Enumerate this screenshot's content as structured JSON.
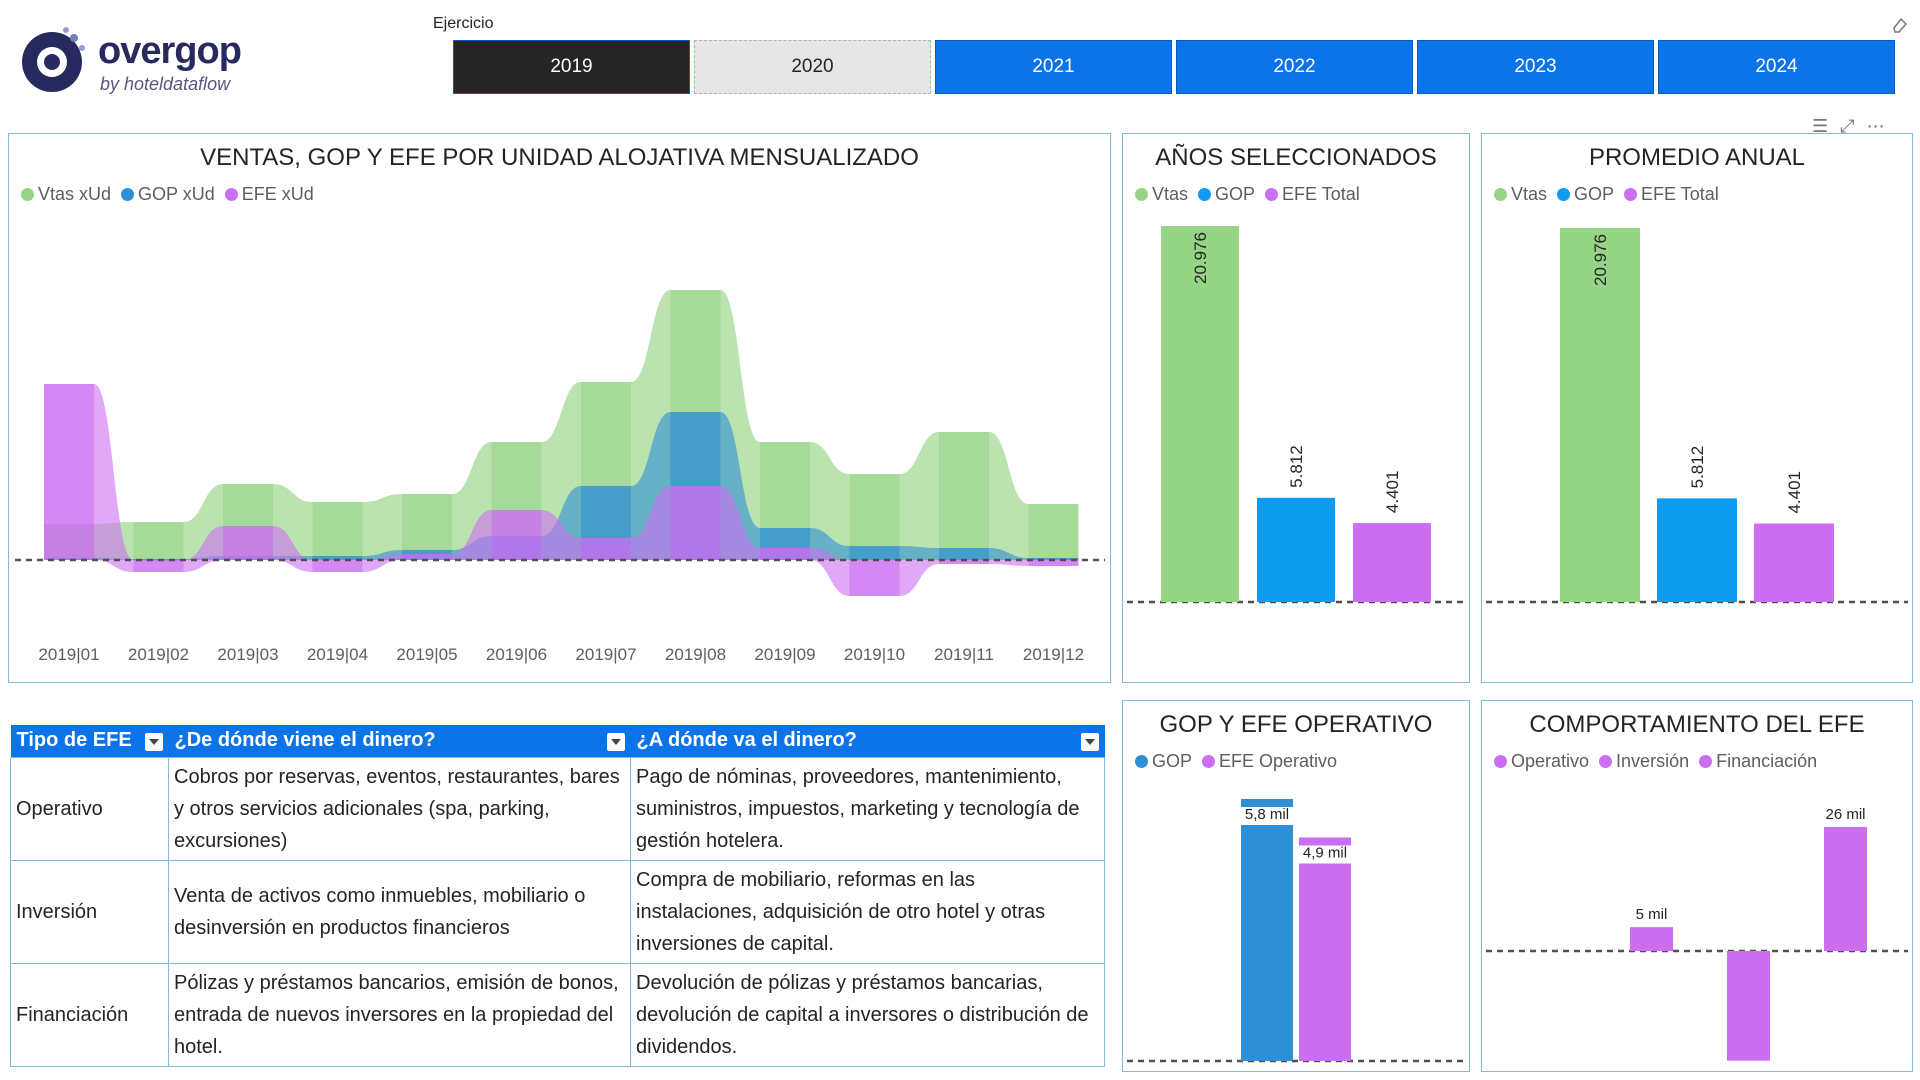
{
  "brand": {
    "name": "overgop",
    "sub": "by hoteldataflow"
  },
  "slicer": {
    "label": "Ejercicio",
    "years": [
      "2019",
      "2020",
      "2021",
      "2022",
      "2023",
      "2024"
    ]
  },
  "colors": {
    "vtas": "#96d486",
    "gop": "#2f8fd6",
    "efe": "#cb6ef2",
    "blue_bar": "#0f9cf0"
  },
  "panels": {
    "main": {
      "title": "VENTAS, GOP Y EFE POR UNIDAD ALOJATIVA MENSUALIZADO",
      "legend": [
        "Vtas xUd",
        "GOP xUd",
        "EFE xUd"
      ]
    },
    "anios": {
      "title": "AÑOS SELECCIONADOS",
      "legend": [
        "Vtas",
        "GOP",
        "EFE Total"
      ]
    },
    "promedio": {
      "title": "PROMEDIO ANUAL",
      "legend": [
        "Vtas",
        "GOP",
        "EFE Total"
      ]
    },
    "gop_efe": {
      "title": "GOP Y EFE OPERATIVO",
      "legend": [
        "GOP",
        "EFE Operativo"
      ]
    },
    "comport": {
      "title": "COMPORTAMIENTO DEL EFE",
      "legend": [
        "Operativo",
        "Inversión",
        "Financiación"
      ]
    }
  },
  "chart_data": [
    {
      "type": "area",
      "title": "VENTAS, GOP Y EFE POR UNIDAD ALOJATIVA MENSUALIZADO",
      "categories": [
        "2019|01",
        "2019|02",
        "2019|03",
        "2019|04",
        "2019|05",
        "2019|06",
        "2019|07",
        "2019|08",
        "2019|09",
        "2019|10",
        "2019|11",
        "2019|12"
      ],
      "series": [
        {
          "name": "Vtas xUd",
          "values": [
            180,
            190,
            380,
            290,
            330,
            590,
            890,
            1350,
            590,
            430,
            640,
            280
          ]
        },
        {
          "name": "GOP xUd",
          "values": [
            10,
            5,
            20,
            20,
            50,
            120,
            370,
            740,
            160,
            70,
            60,
            10
          ]
        },
        {
          "name": "EFE xUd",
          "values": [
            880,
            -60,
            170,
            -60,
            30,
            250,
            110,
            370,
            60,
            -180,
            -20,
            -30
          ]
        }
      ]
    },
    {
      "type": "bar",
      "title": "AÑOS SELECCIONADOS",
      "categories": [
        "Vtas",
        "GOP",
        "EFE Total"
      ],
      "values": [
        20976,
        5812,
        4401
      ],
      "data_labels": [
        "20.976",
        "5.812",
        "4.401"
      ]
    },
    {
      "type": "bar",
      "title": "PROMEDIO ANUAL",
      "categories": [
        "Vtas",
        "GOP",
        "EFE Total"
      ],
      "values": [
        20976,
        5812,
        4401
      ],
      "data_labels": [
        "20.976",
        "5.812",
        "4.401"
      ]
    },
    {
      "type": "bar",
      "title": "GOP Y EFE OPERATIVO",
      "categories": [
        "GOP",
        "EFE Operativo"
      ],
      "values": [
        5800,
        4900
      ],
      "data_labels": [
        "5,8 mil",
        "4,9 mil"
      ]
    },
    {
      "type": "bar",
      "title": "COMPORTAMIENTO DEL EFE",
      "categories": [
        "Operativo",
        "Inversión",
        "Financiación"
      ],
      "values": [
        5000,
        -23000,
        26000
      ],
      "data_labels": [
        "5 mil",
        "-23 mil",
        "26 mil"
      ]
    }
  ],
  "table": {
    "headers": [
      "Tipo de EFE",
      "¿De dónde viene el dinero?",
      "¿A dónde va el dinero?"
    ],
    "rows": [
      [
        "Operativo",
        "Cobros por reservas, eventos, restaurantes, bares y otros servicios adicionales (spa, parking, excursiones)",
        "Pago de nóminas, proveedores, mantenimiento, suministros, impuestos, marketing y tecnología de gestión hotelera."
      ],
      [
        "Inversión",
        "Venta de activos como inmuebles, mobiliario o desinversión en productos financieros",
        "Compra de mobiliario, reformas en las instalaciones, adquisición de otro hotel y otras inversiones de capital."
      ],
      [
        "Financiación",
        "Pólizas y préstamos bancarios, emisión de bonos, entrada de nuevos inversores en la propiedad del hotel.",
        "Devolución de pólizas y préstamos bancarias, devolución de capital a inversores o distribución de dividendos."
      ]
    ]
  }
}
